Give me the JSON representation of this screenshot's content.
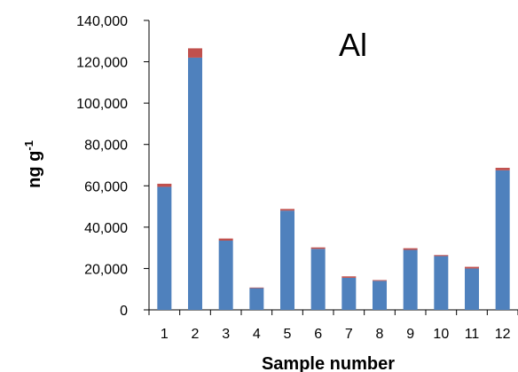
{
  "chart_data": {
    "type": "bar",
    "stacked": true,
    "title": "Al",
    "xlabel": "Sample number",
    "ylabel": "ng g",
    "ylabel_superscript": "-1",
    "categories": [
      "1",
      "2",
      "3",
      "4",
      "5",
      "6",
      "7",
      "8",
      "9",
      "10",
      "11",
      "12"
    ],
    "series": [
      {
        "color": "#4F81BD",
        "values": [
          59500,
          122000,
          33500,
          10500,
          48000,
          29500,
          15500,
          14000,
          29000,
          26000,
          20000,
          67500
        ]
      },
      {
        "color": "#C0504D",
        "values": [
          1500,
          4500,
          1000,
          300,
          800,
          700,
          700,
          400,
          800,
          500,
          800,
          1200
        ]
      }
    ],
    "ylim": [
      0,
      140000
    ],
    "yticks": [
      0,
      20000,
      40000,
      60000,
      80000,
      100000,
      120000,
      140000
    ],
    "ytick_labels": [
      "0",
      "20,000",
      "40,000",
      "60,000",
      "80,000",
      "100,000",
      "120,000",
      "140,000"
    ],
    "grid": false,
    "legend": false
  }
}
